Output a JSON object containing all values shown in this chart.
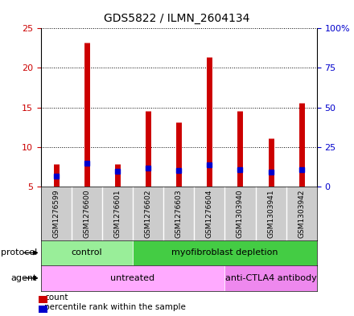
{
  "title": "GDS5822 / ILMN_2604134",
  "samples": [
    "GSM1276599",
    "GSM1276600",
    "GSM1276601",
    "GSM1276602",
    "GSM1276603",
    "GSM1276604",
    "GSM1303940",
    "GSM1303941",
    "GSM1303942"
  ],
  "counts": [
    7.8,
    23.2,
    7.8,
    14.6,
    13.1,
    21.4,
    14.6,
    11.1,
    15.6
  ],
  "percentiles": [
    6.5,
    14.8,
    9.8,
    11.6,
    9.9,
    13.9,
    10.4,
    9.3,
    10.8
  ],
  "baseline": 5.0,
  "ylim_left": [
    5,
    25
  ],
  "ylim_right": [
    0,
    100
  ],
  "yticks_left": [
    5,
    10,
    15,
    20,
    25
  ],
  "yticks_right": [
    0,
    25,
    50,
    75,
    100
  ],
  "yticklabels_right": [
    "0",
    "25",
    "50",
    "75",
    "100%"
  ],
  "bar_color": "#cc0000",
  "dot_color": "#0000cc",
  "protocol_groups": [
    {
      "label": "control",
      "start": 0,
      "end": 3,
      "color": "#99ee99"
    },
    {
      "label": "myofibroblast depletion",
      "start": 3,
      "end": 9,
      "color": "#44cc44"
    }
  ],
  "agent_groups": [
    {
      "label": "untreated",
      "start": 0,
      "end": 6,
      "color": "#ffaaff"
    },
    {
      "label": "anti-CTLA4 antibody",
      "start": 6,
      "end": 9,
      "color": "#ee88ee"
    }
  ],
  "protocol_label": "protocol",
  "agent_label": "agent",
  "legend_count_label": "count",
  "legend_pct_label": "percentile rank within the sample",
  "plot_bg": "#ffffff",
  "sample_bg": "#cccccc",
  "grid_color": "#000000",
  "axis_color_left": "#cc0000",
  "axis_color_right": "#0000cc"
}
